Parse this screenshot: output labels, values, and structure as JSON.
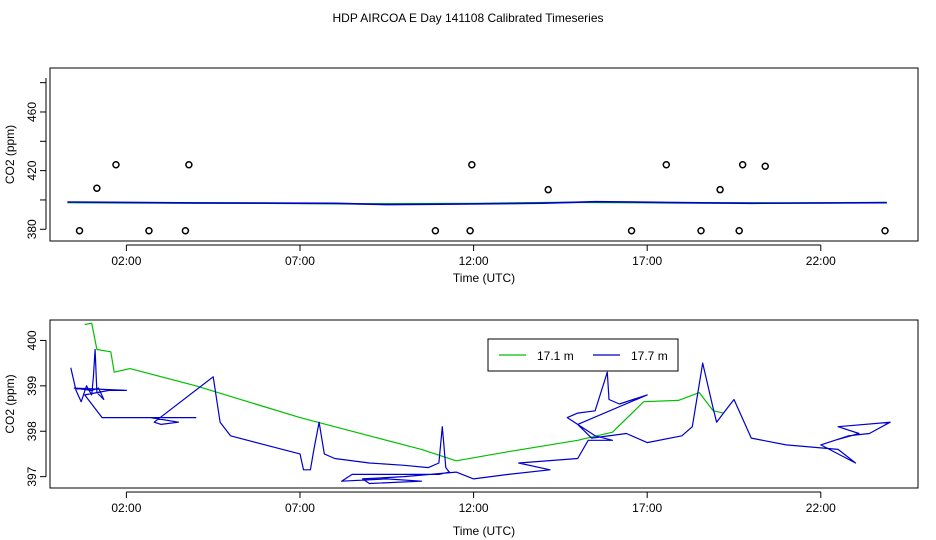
{
  "title": "HDP AIRCOA E  Day 141108  Calibrated Timeseries",
  "colors": {
    "line_17_1": "#00c000",
    "line_17_7": "#0000cc",
    "points": "#000000",
    "axis": "#000000"
  },
  "chart_data": [
    {
      "type": "scatter",
      "xlabel": "Time (UTC)",
      "ylabel": "CO2 (ppm)",
      "xlim": [
        -0.2,
        24.8
      ],
      "ylim": [
        372,
        490
      ],
      "x_ticks": [
        2,
        7,
        12,
        17,
        22
      ],
      "x_tick_labels": [
        "02:00",
        "07:00",
        "12:00",
        "17:00",
        "22:00"
      ],
      "y_ticks": [
        380,
        420,
        460
      ],
      "y_tick_labels": [
        "380",
        "420",
        "460"
      ],
      "points": [
        {
          "x": 0.65,
          "y": 379
        },
        {
          "x": 1.15,
          "y": 408
        },
        {
          "x": 1.7,
          "y": 424
        },
        {
          "x": 2.65,
          "y": 379
        },
        {
          "x": 3.7,
          "y": 379
        },
        {
          "x": 3.8,
          "y": 424
        },
        {
          "x": 10.9,
          "y": 379
        },
        {
          "x": 11.9,
          "y": 379
        },
        {
          "x": 11.95,
          "y": 424
        },
        {
          "x": 14.15,
          "y": 407
        },
        {
          "x": 16.55,
          "y": 379
        },
        {
          "x": 17.55,
          "y": 424
        },
        {
          "x": 18.55,
          "y": 379
        },
        {
          "x": 19.1,
          "y": 407
        },
        {
          "x": 19.65,
          "y": 379
        },
        {
          "x": 19.75,
          "y": 424
        },
        {
          "x": 20.4,
          "y": 423
        },
        {
          "x": 23.85,
          "y": 379
        }
      ],
      "series": [
        {
          "values": [
            [
              0.3,
              398.2
            ],
            [
              3,
              398.0
            ],
            [
              6,
              397.8
            ],
            [
              9,
              397.3
            ],
            [
              12,
              397.6
            ],
            [
              15,
              398.4
            ],
            [
              18,
              398.0
            ],
            [
              21,
              397.9
            ],
            [
              23.9,
              398.2
            ]
          ]
        },
        {
          "values": [
            [
              0.3,
              398.6
            ],
            [
              1.5,
              398.4
            ],
            [
              4,
              398.0
            ],
            [
              8,
              397.7
            ],
            [
              9.5,
              396.8
            ],
            [
              11.5,
              397.2
            ],
            [
              14,
              397.8
            ],
            [
              15.5,
              398.8
            ],
            [
              17.5,
              398.3
            ],
            [
              20,
              397.7
            ],
            [
              23.9,
              398.1
            ]
          ]
        }
      ]
    },
    {
      "type": "line",
      "xlabel": "Time (UTC)",
      "ylabel": "CO2 (ppm)",
      "xlim": [
        -0.2,
        24.8
      ],
      "ylim": [
        396.75,
        400.45
      ],
      "x_ticks": [
        2,
        7,
        12,
        17,
        22
      ],
      "x_tick_labels": [
        "02:00",
        "07:00",
        "12:00",
        "17:00",
        "22:00"
      ],
      "y_ticks": [
        397,
        398,
        399,
        400
      ],
      "y_tick_labels": [
        "397",
        "398",
        "399",
        "400"
      ],
      "legend": {
        "position": "top-right-of-center"
      },
      "series": [
        {
          "name": "17.1 m",
          "values": [
            [
              0.8,
              400.35
            ],
            [
              1.0,
              400.38
            ],
            [
              1.15,
              399.8
            ],
            [
              1.55,
              399.75
            ],
            [
              1.65,
              399.3
            ],
            [
              2.1,
              399.38
            ],
            [
              4.0,
              399.0
            ],
            [
              7.0,
              398.3
            ],
            [
              9.0,
              397.9
            ],
            [
              10.5,
              397.6
            ],
            [
              11.5,
              397.35
            ],
            [
              13.0,
              397.55
            ],
            [
              15.0,
              397.8
            ],
            [
              16.0,
              397.98
            ],
            [
              16.9,
              398.65
            ],
            [
              17.9,
              398.68
            ],
            [
              18.5,
              398.85
            ],
            [
              18.9,
              398.45
            ],
            [
              19.2,
              398.4
            ]
          ]
        },
        {
          "name": "17.7 m",
          "values": [
            [
              0.4,
              399.4
            ],
            [
              0.55,
              398.9
            ],
            [
              0.7,
              398.65
            ],
            [
              0.85,
              399.0
            ],
            [
              1.0,
              398.8
            ],
            [
              1.05,
              399.2
            ],
            [
              1.1,
              399.8
            ],
            [
              1.15,
              398.85
            ],
            [
              1.35,
              398.7
            ],
            [
              1.2,
              398.95
            ],
            [
              1.0,
              398.9
            ],
            [
              0.5,
              398.95
            ],
            [
              2.0,
              398.9
            ],
            [
              1.5,
              398.9
            ],
            [
              0.8,
              398.8
            ],
            [
              1.3,
              398.3
            ],
            [
              3.4,
              398.3
            ],
            [
              4.0,
              398.3
            ],
            [
              2.7,
              398.3
            ],
            [
              3.5,
              398.2
            ],
            [
              3.0,
              398.15
            ],
            [
              2.8,
              398.2
            ],
            [
              4.5,
              399.2
            ],
            [
              4.7,
              398.2
            ],
            [
              5.0,
              397.9
            ],
            [
              6.0,
              397.7
            ],
            [
              7.0,
              397.5
            ],
            [
              7.1,
              397.15
            ],
            [
              7.3,
              397.15
            ],
            [
              7.4,
              397.6
            ],
            [
              7.55,
              398.2
            ],
            [
              7.7,
              397.5
            ],
            [
              8.0,
              397.4
            ],
            [
              9.0,
              397.3
            ],
            [
              10.0,
              397.25
            ],
            [
              10.7,
              397.2
            ],
            [
              11.0,
              397.3
            ],
            [
              11.1,
              398.1
            ],
            [
              11.2,
              397.2
            ],
            [
              11.3,
              397.1
            ],
            [
              11.0,
              397.05
            ],
            [
              10.6,
              397.05
            ],
            [
              8.5,
              397.05
            ],
            [
              8.2,
              396.9
            ],
            [
              9.5,
              396.95
            ],
            [
              10.5,
              396.9
            ],
            [
              9.0,
              396.85
            ],
            [
              8.8,
              396.95
            ],
            [
              10.0,
              397.0
            ],
            [
              11.5,
              397.1
            ],
            [
              12.0,
              396.95
            ],
            [
              13.0,
              397.05
            ],
            [
              14.2,
              397.15
            ],
            [
              13.3,
              397.3
            ],
            [
              15.0,
              397.4
            ],
            [
              15.3,
              397.8
            ],
            [
              16.0,
              397.8
            ],
            [
              15.5,
              397.9
            ],
            [
              14.7,
              398.3
            ],
            [
              15.0,
              398.4
            ],
            [
              15.5,
              398.45
            ],
            [
              15.85,
              399.3
            ],
            [
              15.9,
              398.7
            ],
            [
              16.2,
              398.6
            ],
            [
              17.0,
              398.8
            ],
            [
              15.0,
              398.15
            ],
            [
              15.4,
              397.85
            ],
            [
              16.4,
              397.95
            ],
            [
              17.0,
              397.75
            ],
            [
              18.0,
              397.9
            ],
            [
              18.3,
              398.1
            ],
            [
              18.6,
              399.5
            ],
            [
              18.9,
              398.5
            ],
            [
              19.0,
              398.2
            ],
            [
              19.3,
              398.5
            ],
            [
              19.5,
              398.7
            ],
            [
              20.0,
              397.85
            ],
            [
              21.0,
              397.7
            ],
            [
              22.5,
              397.6
            ],
            [
              23.0,
              397.3
            ],
            [
              22.0,
              397.7
            ],
            [
              22.8,
              397.9
            ],
            [
              23.4,
              397.95
            ],
            [
              24.0,
              398.2
            ],
            [
              22.5,
              398.1
            ],
            [
              23.1,
              397.95
            ],
            [
              22.4,
              397.8
            ]
          ]
        }
      ]
    }
  ]
}
